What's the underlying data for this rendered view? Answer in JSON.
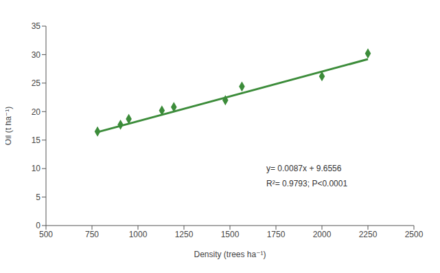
{
  "chart_data": {
    "type": "scatter",
    "x_label": "Density (trees ha⁻¹)",
    "y_label": "Oil (t ha⁻¹)",
    "xlim": [
      500,
      2500
    ],
    "xticks": [
      500,
      750,
      1000,
      1250,
      1500,
      1750,
      2000,
      2250,
      2500
    ],
    "ylim": [
      0,
      35
    ],
    "yticks": [
      0,
      5,
      10,
      15,
      20,
      25,
      30,
      35
    ],
    "grid": false,
    "series": [
      {
        "type": "scatter",
        "marker": "diamond",
        "color": "#3c8c3a",
        "x": [
          780,
          905,
          950,
          1130,
          1195,
          1475,
          1565,
          2000,
          2250
        ],
        "values": [
          16.5,
          17.7,
          18.7,
          20.2,
          20.8,
          22.0,
          24.4,
          26.2,
          30.2
        ]
      },
      {
        "type": "line",
        "line_style": "solid",
        "color": "#3c8c3a",
        "x": [
          780,
          2250
        ],
        "values": [
          16.4,
          29.2
        ]
      }
    ],
    "annotations": [
      "y= 0.0087x + 9.6556",
      "R²= 0.9793; P<0.0001"
    ]
  }
}
